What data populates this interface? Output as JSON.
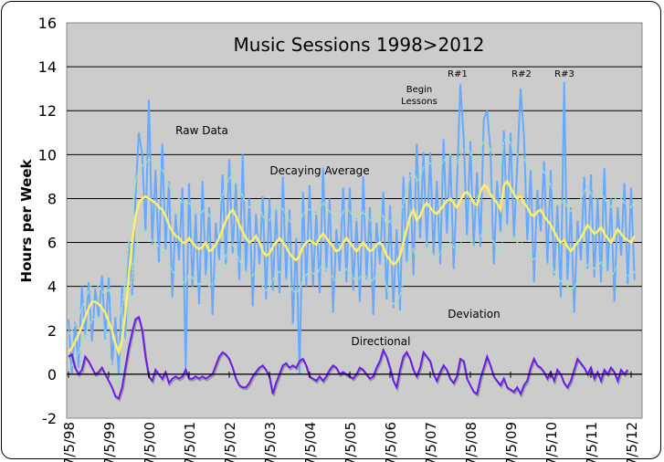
{
  "chart_data": {
    "type": "line",
    "title": "Music Sessions 1998>2012",
    "ylabel": "Hours per Week",
    "xlabel": "",
    "ylim": [
      -2,
      16
    ],
    "yticks": [
      -2,
      0,
      2,
      4,
      6,
      8,
      10,
      12,
      14,
      16
    ],
    "xtick_labels": [
      "7/5/98",
      "7/5/99",
      "7/5/00",
      "7/5/01",
      "7/5/02",
      "7/5/03",
      "7/5/04",
      "7/5/05",
      "7/5/06",
      "7/5/07",
      "7/5/08",
      "7/5/09",
      "7/5/10",
      "7/5/11",
      "7/5/12"
    ],
    "x_unit": "months since Jul 1998",
    "grid": true,
    "annotations": {
      "raw": "Raw Data",
      "avg": "Decaying Average",
      "lessons1": "Begin",
      "lessons2": "Lessons",
      "r1": "R#1",
      "r2": "R#2",
      "r3": "R#3",
      "dev": "Deviation",
      "dir": "Directional"
    },
    "colors": {
      "raw": "#66aaff",
      "avg": "#ffee66",
      "dev": "#aaddbb",
      "dir": "#6a1de8",
      "plot_bg": "#cccccc"
    },
    "series": [
      {
        "name": "Raw Data",
        "values": [
          2.5,
          0,
          2.4,
          0.3,
          4.0,
          1.7,
          4.2,
          1.5,
          3.9,
          2.6,
          4.5,
          1.6,
          4.4,
          0.4,
          2.6,
          0,
          4.0,
          1.6,
          6.1,
          3.6,
          8.0,
          11.0,
          10.0,
          6.5,
          12.5,
          5.9,
          9.3,
          5.1,
          10.5,
          5.7,
          8.8,
          3.5,
          7.3,
          5.2,
          8.5,
          0.2,
          8.7,
          4.0,
          7.3,
          3.2,
          8.8,
          4.5,
          7.6,
          2.7,
          6.9,
          5.2,
          9.1,
          5.0,
          9.8,
          5.5,
          8.7,
          4.3,
          10.0,
          4.7,
          8.0,
          3.1,
          7.3,
          5.0,
          8.1,
          3.4,
          8.0,
          3.8,
          7.5,
          3.7,
          9.0,
          4.3,
          7.5,
          2.3,
          6.2,
          0,
          8.3,
          4.0,
          8.6,
          4.0,
          7.4,
          3.7,
          9.4,
          4.7,
          8.0,
          2.8,
          6.6,
          4.7,
          8.5,
          4.2,
          8.5,
          3.8,
          7.1,
          3.3,
          9.0,
          4.3,
          7.6,
          2.7,
          6.9,
          5.0,
          8.3,
          3.4,
          7.7,
          3.0,
          6.6,
          2.9,
          9.0,
          5.1,
          9.2,
          4.5,
          10.5,
          6.2,
          10.1,
          5.8,
          10.1,
          5.4,
          8.8,
          5.0,
          10.7,
          6.4,
          10.0,
          4.8,
          8.6,
          13.2,
          10.7,
          6.3,
          10.6,
          5.8,
          9.2,
          5.8,
          11.6,
          12.0,
          10.2,
          5.0,
          8.8,
          6.5,
          11.1,
          6.8,
          11.0,
          6.2,
          9.5,
          13.0,
          10.8,
          6.1,
          9.3,
          4.2,
          8.4,
          6.5,
          9.7,
          5.0,
          9.3,
          4.5,
          7.7,
          3.5,
          13.3,
          4.3,
          7.6,
          2.8,
          7.0,
          5.2,
          9.0,
          4.8,
          9.1,
          4.4,
          8.0,
          4.2,
          9.4,
          4.7,
          8.0,
          3.3,
          7.6,
          5.4,
          8.7,
          4.1,
          8.5,
          4.3
        ]
      },
      {
        "name": "Decaying Average",
        "values": [
          1.0,
          1.2,
          1.5,
          1.8,
          2.2,
          2.6,
          3.0,
          3.3,
          3.3,
          3.2,
          3.0,
          2.8,
          2.4,
          2.0,
          1.4,
          1.0,
          1.6,
          2.8,
          4.5,
          6.0,
          7.2,
          7.8,
          8.0,
          8.1,
          8.0,
          7.9,
          7.8,
          7.6,
          7.5,
          7.2,
          6.8,
          6.5,
          6.3,
          6.2,
          6.0,
          6.0,
          6.2,
          6.0,
          5.8,
          5.7,
          5.8,
          6.0,
          5.6,
          5.7,
          5.9,
          6.2,
          6.6,
          7.0,
          7.3,
          7.5,
          7.2,
          6.8,
          6.5,
          6.2,
          6.0,
          6.1,
          6.3,
          6.0,
          5.6,
          5.4,
          5.5,
          5.8,
          6.0,
          6.2,
          6.0,
          5.8,
          5.5,
          5.3,
          5.2,
          5.4,
          5.8,
          6.0,
          6.1,
          6.0,
          5.9,
          6.2,
          6.4,
          6.2,
          6.0,
          5.8,
          5.6,
          5.7,
          6.0,
          6.2,
          6.0,
          5.8,
          5.6,
          5.8,
          6.0,
          5.8,
          5.6,
          5.7,
          5.9,
          6.0,
          5.8,
          5.4,
          5.2,
          5.0,
          5.1,
          5.4,
          6.0,
          6.6,
          7.2,
          7.5,
          7.0,
          7.2,
          7.6,
          7.8,
          7.6,
          7.4,
          7.3,
          7.5,
          7.7,
          7.9,
          8.0,
          7.8,
          7.6,
          7.9,
          8.2,
          8.3,
          8.1,
          7.8,
          7.7,
          8.3,
          8.6,
          8.5,
          8.2,
          8.0,
          7.8,
          7.5,
          8.6,
          8.8,
          8.5,
          8.2,
          8.0,
          8.1,
          7.8,
          7.6,
          7.3,
          7.2,
          7.4,
          7.5,
          7.2,
          7.0,
          6.8,
          6.5,
          6.2,
          6.0,
          6.1,
          5.8,
          5.6,
          5.8,
          6.0,
          6.2,
          6.5,
          6.8,
          6.6,
          6.4,
          6.5,
          6.7,
          6.4,
          6.2,
          6.0,
          6.3,
          6.6,
          6.4,
          6.2,
          6.1,
          6.0,
          6.3
        ]
      },
      {
        "name": "Deviation",
        "half_width_by_year": [
          0.8,
          1.5,
          1.8,
          1.6,
          1.6,
          1.5,
          1.4,
          1.4,
          1.8,
          2.0,
          2.0,
          2.0,
          1.8,
          1.6,
          1.6
        ]
      },
      {
        "name": "Directional",
        "values": [
          0.8,
          0.9,
          0.3,
          0.0,
          0.2,
          0.8,
          0.6,
          0.3,
          0.0,
          0.1,
          0.3,
          0.0,
          -0.3,
          -0.6,
          -1.0,
          -1.1,
          -0.6,
          0.3,
          1.2,
          1.9,
          2.5,
          2.6,
          2.0,
          0.8,
          -0.1,
          -0.3,
          0.2,
          0.0,
          -0.2,
          0.1,
          -0.4,
          -0.2,
          -0.1,
          -0.2,
          -0.1,
          0.2,
          -0.2,
          -0.2,
          -0.1,
          -0.2,
          -0.1,
          -0.2,
          -0.1,
          0.0,
          0.4,
          0.8,
          1.0,
          0.9,
          0.7,
          0.3,
          -0.2,
          -0.5,
          -0.6,
          -0.6,
          -0.4,
          -0.1,
          0.1,
          0.3,
          0.4,
          0.2,
          -0.1,
          -0.9,
          -0.4,
          0.0,
          0.4,
          0.5,
          0.3,
          0.4,
          0.3,
          0.6,
          0.7,
          0.4,
          -0.1,
          -0.2,
          -0.3,
          -0.1,
          -0.3,
          -0.1,
          0.2,
          0.4,
          0.3,
          0.0,
          0.1,
          0.0,
          -0.1,
          -0.2,
          0.0,
          0.3,
          0.2,
          0.0,
          -0.2,
          -0.1,
          0.3,
          0.6,
          1.1,
          0.8,
          0.3,
          -0.3,
          -0.6,
          0.2,
          0.8,
          1.0,
          0.7,
          0.2,
          -0.1,
          0.3,
          1.0,
          0.8,
          0.6,
          0.0,
          -0.3,
          0.1,
          0.4,
          0.2,
          -0.2,
          -0.4,
          -0.1,
          0.7,
          0.6,
          -0.2,
          -0.5,
          -0.8,
          -0.9,
          -0.2,
          0.3,
          0.8,
          0.4,
          -0.1,
          -0.3,
          -0.5,
          -0.2,
          -0.6,
          -0.7,
          -0.8,
          -0.6,
          -0.9,
          -0.5,
          -0.3,
          0.3,
          0.7,
          0.4,
          0.3,
          0.1,
          -0.2,
          0.1,
          -0.3,
          0.2,
          0.0,
          -0.4,
          -0.6,
          -0.3,
          0.2,
          0.7,
          0.5,
          0.3,
          0.0,
          0.3,
          -0.2,
          0.1,
          -0.3,
          0.2,
          0.0,
          0.3,
          0.1,
          -0.3,
          0.2,
          0.0,
          0.2
        ]
      }
    ]
  }
}
